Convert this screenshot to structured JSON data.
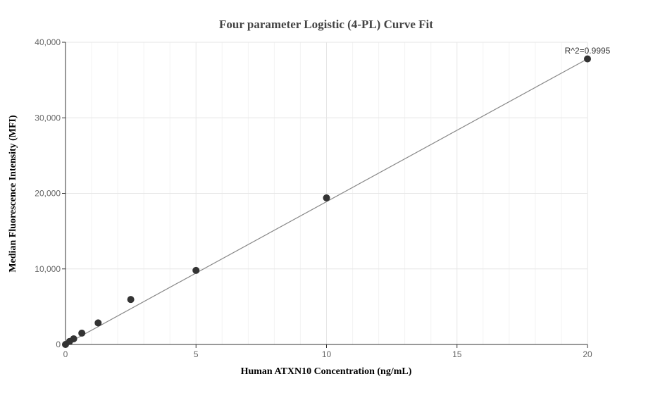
{
  "chart_data": {
    "type": "scatter",
    "title": "Four parameter Logistic (4-PL) Curve Fit",
    "xlabel": "Human ATXN10 Concentration (ng/mL)",
    "ylabel": "Median Fluorescence Intensity (MFI)",
    "xlim": [
      0,
      20
    ],
    "ylim": [
      0,
      40000
    ],
    "x_ticks": [
      0,
      5,
      10,
      15,
      20
    ],
    "x_tick_labels": [
      "0",
      "5",
      "10",
      "15",
      "20"
    ],
    "y_ticks": [
      0,
      10000,
      20000,
      30000,
      40000
    ],
    "y_tick_labels": [
      "0",
      "10,000",
      "20,000",
      "30,000",
      "40,000"
    ],
    "x_minor_step": 1,
    "grid": true,
    "points": [
      {
        "x": 0.0,
        "y": 0
      },
      {
        "x": 0.156,
        "y": 400
      },
      {
        "x": 0.3125,
        "y": 750
      },
      {
        "x": 0.625,
        "y": 1500
      },
      {
        "x": 1.25,
        "y": 2850
      },
      {
        "x": 2.5,
        "y": 5950
      },
      {
        "x": 5.0,
        "y": 9800
      },
      {
        "x": 10.0,
        "y": 19400
      },
      {
        "x": 20.0,
        "y": 37800
      }
    ],
    "fit_line": [
      {
        "x": 0.0,
        "y": 0
      },
      {
        "x": 20.0,
        "y": 37800
      }
    ],
    "annotation": "R^2=0.9995",
    "colors": {
      "point": "#333333",
      "fit_line": "#888888",
      "grid": "#e6e6e6",
      "axis": "#333333"
    }
  }
}
